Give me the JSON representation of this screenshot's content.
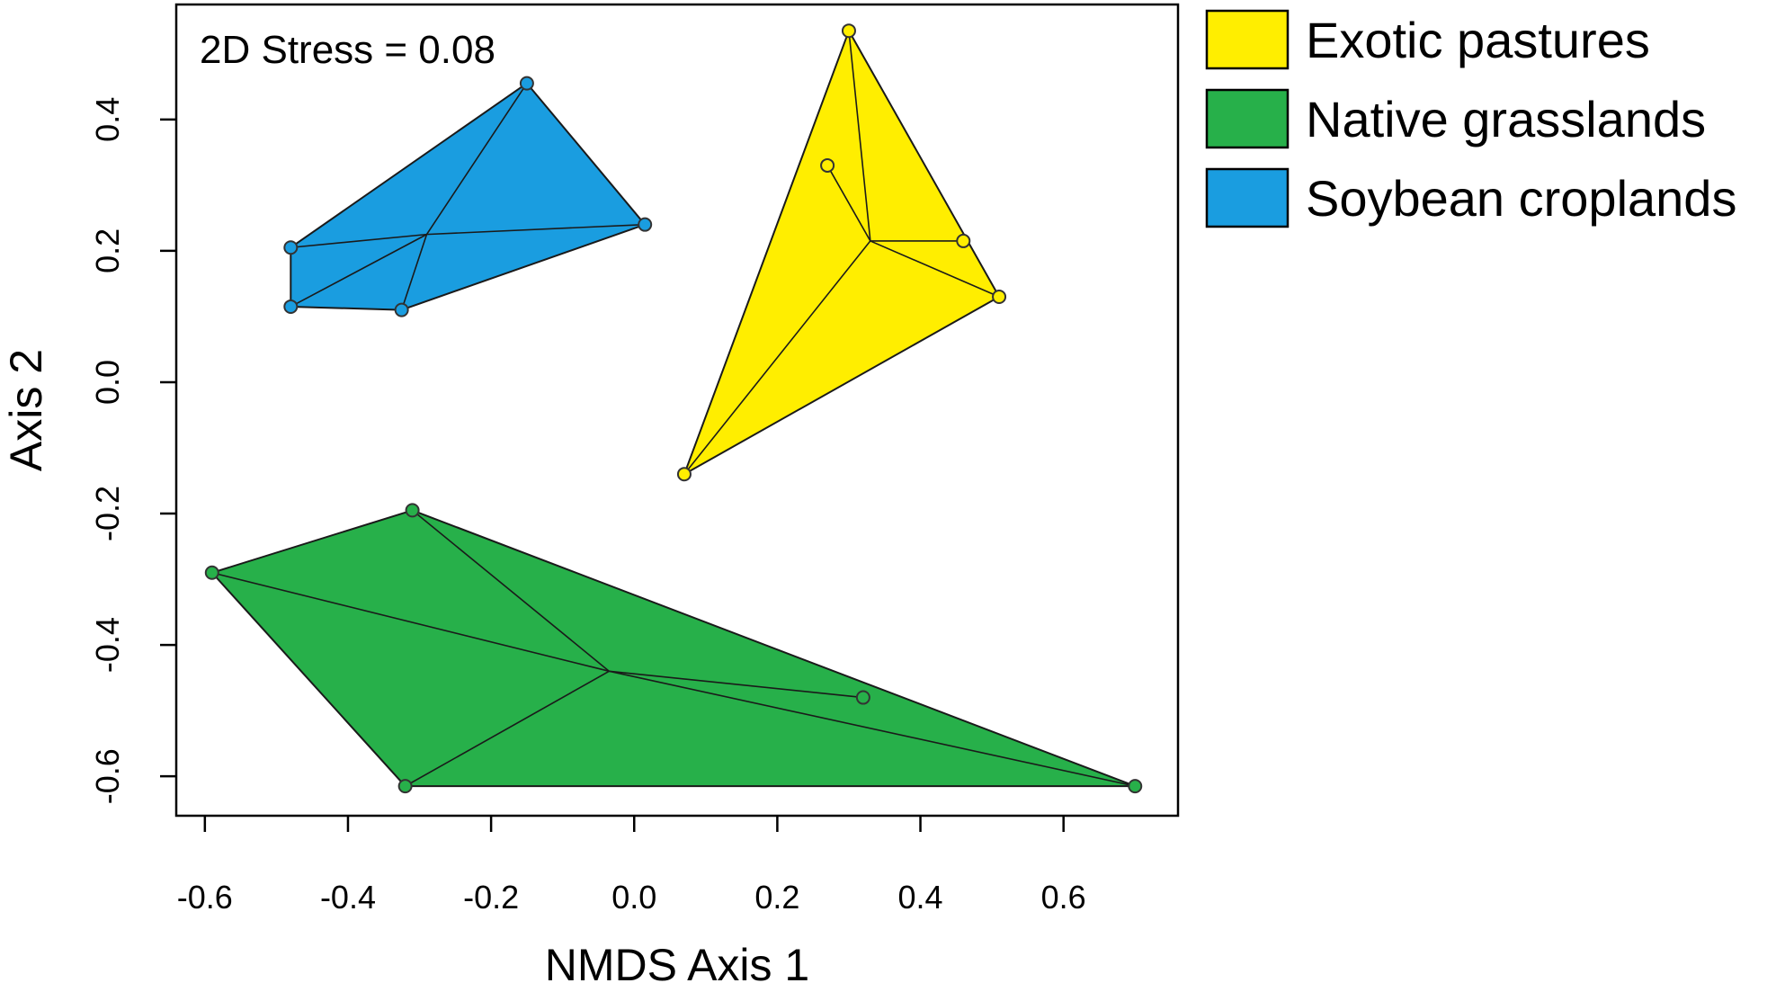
{
  "chart_data": {
    "type": "scatter",
    "title": "",
    "xlabel": "NMDS Axis 1",
    "ylabel": "Axis 2",
    "xlim": [
      -0.64,
      0.76
    ],
    "ylim": [
      -0.66,
      0.575
    ],
    "xticks": [
      -0.6,
      -0.4,
      -0.2,
      0.0,
      0.2,
      0.4,
      0.6
    ],
    "xtick_labels": [
      "-0.6",
      "-0.4",
      "-0.2",
      "0.0",
      "0.2",
      "0.4",
      "0.6"
    ],
    "yticks": [
      -0.6,
      -0.4,
      -0.2,
      0.0,
      0.2,
      0.4
    ],
    "ytick_labels": [
      "-0.6",
      "-0.4",
      "-0.2",
      "0.0",
      "0.2",
      "0.4"
    ],
    "annotation": "2D Stress = 0.08",
    "legend_position": "outside-top-right",
    "grid": false,
    "series": [
      {
        "name": "Exotic pastures",
        "color": "#ffee00",
        "centroid": [
          0.33,
          0.215
        ],
        "points": [
          [
            0.3,
            0.535
          ],
          [
            0.27,
            0.33
          ],
          [
            0.46,
            0.215
          ],
          [
            0.51,
            0.13
          ],
          [
            0.07,
            -0.14
          ]
        ],
        "hull": [
          [
            0.3,
            0.535
          ],
          [
            0.51,
            0.13
          ],
          [
            0.07,
            -0.14
          ]
        ]
      },
      {
        "name": "Native grasslands",
        "color": "#27b04a",
        "centroid": [
          -0.035,
          -0.44
        ],
        "points": [
          [
            -0.31,
            -0.195
          ],
          [
            -0.59,
            -0.29
          ],
          [
            0.32,
            -0.48
          ],
          [
            -0.32,
            -0.615
          ],
          [
            0.7,
            -0.615
          ]
        ],
        "hull": [
          [
            -0.31,
            -0.195
          ],
          [
            0.7,
            -0.615
          ],
          [
            -0.32,
            -0.615
          ],
          [
            -0.59,
            -0.29
          ]
        ]
      },
      {
        "name": "Soybean croplands",
        "color": "#1a9de0",
        "centroid": [
          -0.29,
          0.225
        ],
        "points": [
          [
            -0.15,
            0.455
          ],
          [
            -0.48,
            0.205
          ],
          [
            0.015,
            0.24
          ],
          [
            -0.48,
            0.115
          ],
          [
            -0.325,
            0.11
          ]
        ],
        "hull": [
          [
            -0.15,
            0.455
          ],
          [
            0.015,
            0.24
          ],
          [
            -0.325,
            0.11
          ],
          [
            -0.48,
            0.115
          ],
          [
            -0.48,
            0.205
          ]
        ]
      }
    ]
  }
}
